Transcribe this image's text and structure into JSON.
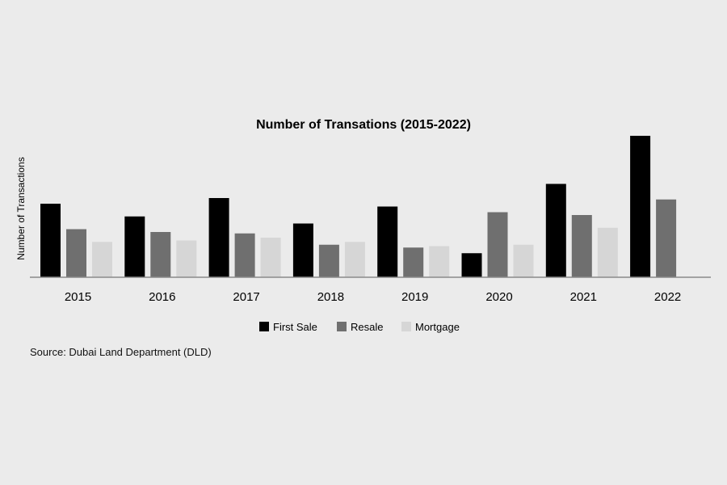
{
  "chart_data": {
    "type": "bar",
    "title": "Number of Transations (2015-2022)",
    "ylabel": "Number of Transactions",
    "xlabel": "",
    "categories": [
      "2015",
      "2016",
      "2017",
      "2018",
      "2019",
      "2020",
      "2021",
      "2022"
    ],
    "series": [
      {
        "name": "First Sale",
        "color": "#000000",
        "values": [
          52,
          43,
          56,
          38,
          50,
          17,
          66,
          100
        ]
      },
      {
        "name": "Resale",
        "color": "#6f6f6f",
        "values": [
          34,
          32,
          31,
          23,
          21,
          46,
          44,
          55
        ]
      },
      {
        "name": "Mortgage",
        "color": "#d6d6d6",
        "values": [
          25,
          26,
          28,
          25,
          22,
          23,
          35,
          null
        ]
      }
    ],
    "ylim": [
      0,
      100
    ],
    "grid": false,
    "legend_position": "bottom"
  },
  "source": "Source: Dubai Land Department (DLD)"
}
